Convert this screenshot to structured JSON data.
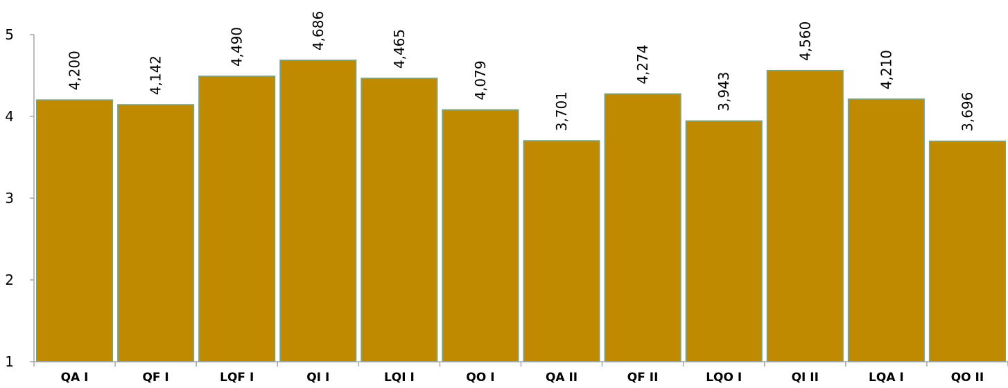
{
  "chart_data": {
    "type": "bar",
    "categories": [
      "QA I",
      "QF I",
      "LQF I",
      "QI I",
      "LQI I",
      "QO I",
      "QA II",
      "QF II",
      "LQO I",
      "QI II",
      "LQA I",
      "QO II"
    ],
    "values": [
      4.2,
      4.142,
      4.49,
      4.686,
      4.465,
      4.079,
      3.701,
      4.274,
      3.943,
      4.56,
      4.21,
      3.696
    ],
    "data_labels": [
      "4,200",
      "4,142",
      "4,490",
      "4,686",
      "4,465",
      "4,079",
      "3,701",
      "4,274",
      "3,943",
      "4,560",
      "4,210",
      "3,696"
    ],
    "y_ticks": [
      "1",
      "2",
      "3",
      "4",
      "5"
    ],
    "ylim": [
      1,
      5
    ],
    "grid": false,
    "legend": "none",
    "colors": {
      "bar_fill": "#C08A00",
      "bar_stroke": "#7FA07A",
      "axis": "#A6A6A6"
    }
  }
}
